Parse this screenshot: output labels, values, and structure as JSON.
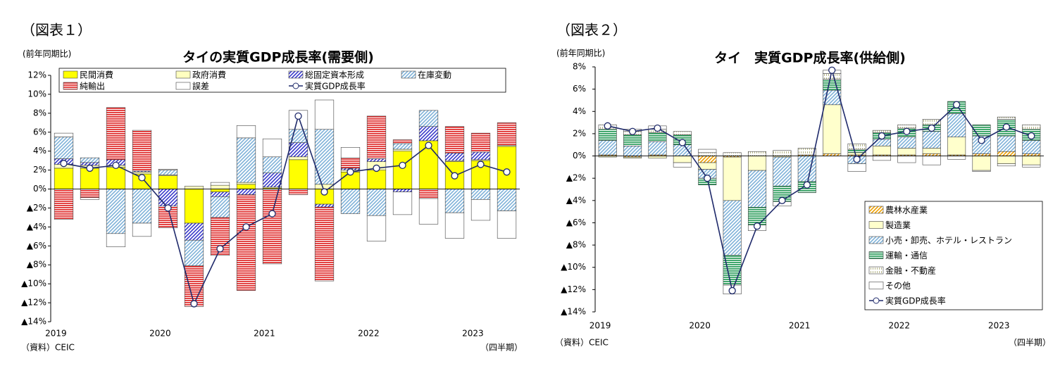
{
  "chart_data": [
    {
      "type": "stacked_bar",
      "figure_label": "（図表１）",
      "unit_label": "(前年同期比)",
      "title": "タイの実質GDP成長率(需要側)",
      "source": "（資料）CEIC",
      "period_label": "（四半期）",
      "categories": [
        "2019",
        null,
        null,
        null,
        "2020",
        null,
        null,
        null,
        "2021",
        null,
        null,
        null,
        "2022",
        null,
        null,
        null,
        "2023",
        null
      ],
      "ylim": [
        -14,
        12
      ],
      "yticks": [
        {
          "value": 12,
          "label": "12%"
        },
        {
          "value": 10,
          "label": "10%"
        },
        {
          "value": 8,
          "label": "8%"
        },
        {
          "value": 6,
          "label": "6%"
        },
        {
          "value": 4,
          "label": "4%"
        },
        {
          "value": 2,
          "label": "2%"
        },
        {
          "value": 0,
          "label": "0%"
        },
        {
          "value": -2,
          "label": "▲2%"
        },
        {
          "value": -4,
          "label": "▲4%"
        },
        {
          "value": -6,
          "label": "▲6%"
        },
        {
          "value": -8,
          "label": "▲8%"
        },
        {
          "value": -10,
          "label": "▲10%"
        },
        {
          "value": -12,
          "label": "▲12%"
        },
        {
          "value": -14,
          "label": "▲14%"
        }
      ],
      "legend": "top",
      "series": [
        {
          "name": "民間消費",
          "color": "#ffff00",
          "pattern": "solid",
          "values": [
            2.2,
            2.2,
            2.3,
            1.6,
            1.4,
            -3.6,
            -0.3,
            0.5,
            0.1,
            3.1,
            -1.6,
            1.8,
            2.0,
            4.0,
            5.1,
            2.9,
            3.0,
            4.5
          ]
        },
        {
          "name": "政府消費",
          "color": "#ffffc0",
          "pattern": "solid",
          "values": [
            0.4,
            0.3,
            0.2,
            0.2,
            0.1,
            0.3,
            0.4,
            0.2,
            0.1,
            0.3,
            0.5,
            0.2,
            0.9,
            0.2,
            0.0,
            0.1,
            0.1,
            0.1
          ]
        },
        {
          "name": "総固定資本形成",
          "color": "#3a3acb",
          "pattern": "diagonal",
          "values": [
            0.6,
            0.3,
            0.6,
            0.1,
            -1.8,
            -1.8,
            -0.5,
            -0.6,
            1.5,
            1.5,
            -0.3,
            0.2,
            0.3,
            -0.3,
            1.5,
            0.8,
            0.8,
            0.0
          ]
        },
        {
          "name": "在庫変動",
          "color": "#7fb2d9",
          "pattern": "diagonal",
          "values": [
            2.3,
            0.5,
            -4.7,
            -3.6,
            0.5,
            -2.7,
            -2.2,
            4.7,
            1.7,
            1.4,
            5.8,
            -2.6,
            -2.8,
            0.6,
            1.7,
            -2.5,
            -1.1,
            -2.3
          ]
        },
        {
          "name": "純輸出",
          "color": "#e03030",
          "pattern": "horizontal",
          "values": [
            -3.2,
            -0.9,
            5.5,
            4.3,
            -2.3,
            -4.3,
            -4.0,
            -10.1,
            -7.9,
            -0.6,
            -7.8,
            1.1,
            4.5,
            0.4,
            -1.0,
            2.8,
            2.0,
            2.4
          ]
        },
        {
          "name": "誤差",
          "color": "#ffffff",
          "pattern": "solid",
          "values": [
            0.4,
            -0.2,
            -1.4,
            -1.4,
            0.1,
            0.0,
            0.3,
            1.3,
            1.9,
            2.0,
            3.1,
            1.1,
            -2.7,
            -2.4,
            -2.7,
            -2.7,
            -2.2,
            -2.9
          ]
        },
        {
          "name": "実質GDP成長率",
          "color": "#1f2a6b",
          "type": "line",
          "values": [
            2.7,
            2.2,
            2.5,
            1.2,
            -2.0,
            -12.1,
            -6.3,
            -4.0,
            -2.6,
            7.7,
            -0.3,
            1.8,
            2.2,
            2.5,
            4.6,
            1.4,
            2.6,
            1.8
          ]
        }
      ]
    },
    {
      "type": "stacked_bar",
      "figure_label": "（図表２）",
      "unit_label": "(前年同期比)",
      "title": "タイ　実質GDP成長率(供給側)",
      "source": "（資料）CEIC",
      "period_label": "（四半期）",
      "categories": [
        "2019",
        null,
        null,
        null,
        "2020",
        null,
        null,
        null,
        "2021",
        null,
        null,
        null,
        "2022",
        null,
        null,
        null,
        "2023",
        null
      ],
      "ylim": [
        -14,
        8
      ],
      "yticks": [
        {
          "value": 8,
          "label": "8%"
        },
        {
          "value": 6,
          "label": "6%"
        },
        {
          "value": 4,
          "label": "4%"
        },
        {
          "value": 2,
          "label": "2%"
        },
        {
          "value": 0,
          "label": "0%"
        },
        {
          "value": -2,
          "label": "▲2%"
        },
        {
          "value": -4,
          "label": "▲4%"
        },
        {
          "value": -6,
          "label": "▲6%"
        },
        {
          "value": -8,
          "label": "▲8%"
        },
        {
          "value": -10,
          "label": "▲10%"
        },
        {
          "value": -12,
          "label": "▲12%"
        },
        {
          "value": -14,
          "label": "▲14%"
        }
      ],
      "legend": "lower right",
      "series": [
        {
          "name": "農林水産業",
          "color": "#f0a000",
          "pattern": "diagonal",
          "values": [
            0.1,
            -0.1,
            0.1,
            0.0,
            -0.6,
            -0.1,
            0.0,
            0.0,
            0.1,
            0.2,
            0.1,
            0.1,
            0.1,
            0.2,
            0.1,
            0.2,
            0.4,
            0.2
          ]
        },
        {
          "name": "製造業",
          "color": "#ffffcc",
          "pattern": "solid",
          "values": [
            -0.1,
            -0.1,
            -0.2,
            -0.6,
            -0.6,
            -3.9,
            -1.3,
            -0.1,
            0.0,
            4.4,
            0.2,
            0.8,
            0.6,
            0.5,
            1.6,
            -1.3,
            -0.7,
            -0.8
          ]
        },
        {
          "name": "小売・卸売、ホテル・レストラン",
          "color": "#7fb2d9",
          "pattern": "diagonal",
          "values": [
            1.3,
            0.9,
            1.2,
            1.0,
            -0.8,
            -4.9,
            -3.3,
            -2.6,
            -2.3,
            1.3,
            -0.7,
            0.6,
            1.0,
            1.5,
            2.1,
            1.6,
            1.4,
            1.2
          ]
        },
        {
          "name": "運輸・通信",
          "color": "#2e9e5e",
          "pattern": "horizontal",
          "values": [
            1.0,
            1.0,
            0.8,
            0.9,
            -0.6,
            -2.7,
            -1.6,
            -1.4,
            -1.0,
            1.0,
            0.3,
            0.6,
            0.8,
            0.6,
            1.1,
            1.0,
            1.5,
            1.0
          ]
        },
        {
          "name": "金融・不動産",
          "color": "#b8b88a",
          "pattern": "vertical",
          "values": [
            0.4,
            0.3,
            0.3,
            0.3,
            0.3,
            0.3,
            0.4,
            0.5,
            0.6,
            0.5,
            0.5,
            0.2,
            0.3,
            0.5,
            0.0,
            0.0,
            0.2,
            0.4
          ]
        },
        {
          "name": "その他",
          "color": "#ffffff",
          "pattern": "solid",
          "values": [
            0.0,
            0.2,
            0.3,
            -0.4,
            0.3,
            -0.8,
            -0.5,
            -0.4,
            0.0,
            0.3,
            -0.7,
            -0.4,
            -0.6,
            -0.8,
            -0.3,
            -0.1,
            -0.2,
            -0.2
          ]
        },
        {
          "name": "実質GDP成長率",
          "color": "#1f2a6b",
          "type": "line",
          "values": [
            2.7,
            2.2,
            2.5,
            1.2,
            -2.0,
            -12.1,
            -6.3,
            -4.0,
            -2.6,
            7.7,
            -0.3,
            1.8,
            2.2,
            2.5,
            4.6,
            1.4,
            2.6,
            1.8
          ]
        }
      ]
    }
  ]
}
